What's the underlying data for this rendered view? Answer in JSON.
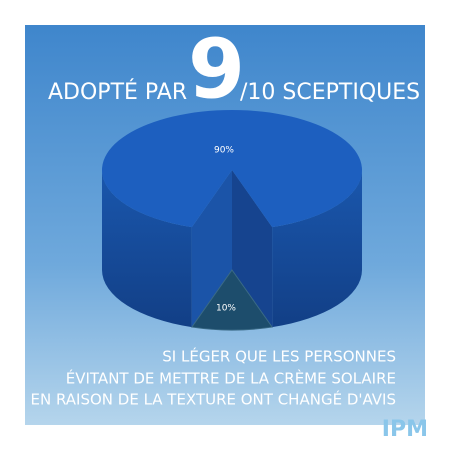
{
  "chart_data": {
    "type": "pie3d",
    "title": [
      "ADOPTÉ PAR",
      "9",
      "/10 SCEPTIQUES"
    ],
    "values": [
      90,
      10
    ],
    "value_labels": [
      "90%",
      "10%"
    ],
    "colors": [
      "#1d5fbf",
      "#1d4d6c"
    ],
    "sunken_slice": 1,
    "caption": [
      "SI LÉGER QUE LES PERSONNES",
      "ÉVITANT DE METTRE DE LA CRÈME SOLAIRE",
      "EN RAISON DE LA TEXTURE ONT CHANGÉ D'AVIS"
    ],
    "logo": "IPM"
  }
}
